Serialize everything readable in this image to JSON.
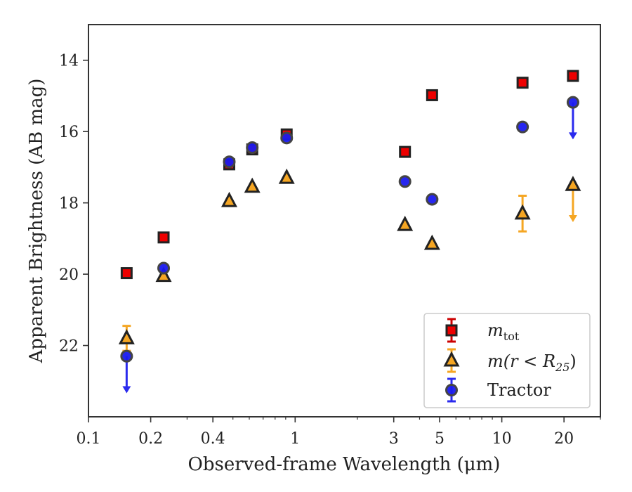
{
  "chart_data": {
    "type": "scatter",
    "title": "",
    "xlabel": "Observed-frame Wavelength (μm)",
    "ylabel": "Apparent Brightness (AB mag)",
    "xscale": "log",
    "yaxis_inverted": true,
    "xlim": [
      0.1,
      30
    ],
    "ylim": [
      24,
      13
    ],
    "x_ticks": [
      {
        "value": 0.1,
        "label": "0.1"
      },
      {
        "value": 0.2,
        "label": "0.2"
      },
      {
        "value": 0.4,
        "label": "0.4"
      },
      {
        "value": 1,
        "label": "1"
      },
      {
        "value": 3,
        "label": "3"
      },
      {
        "value": 5,
        "label": "5"
      },
      {
        "value": 10,
        "label": "10"
      },
      {
        "value": 20,
        "label": "20"
      }
    ],
    "y_ticks": [
      {
        "value": 14,
        "label": "14"
      },
      {
        "value": 16,
        "label": "16"
      },
      {
        "value": 18,
        "label": "18"
      },
      {
        "value": 20,
        "label": "20"
      },
      {
        "value": 22,
        "label": "22"
      }
    ],
    "grid": false,
    "legend_position": "bottom-right",
    "series": [
      {
        "key": "mtot",
        "name": "m_tot",
        "marker": "square",
        "color": "#ee0000",
        "edge_color": "#222222",
        "error_color": "#cc0000",
        "points": [
          {
            "x": 0.153,
            "y": 19.97
          },
          {
            "x": 0.231,
            "y": 18.97
          },
          {
            "x": 0.48,
            "y": 16.92
          },
          {
            "x": 0.62,
            "y": 16.5
          },
          {
            "x": 0.91,
            "y": 16.08
          },
          {
            "x": 3.4,
            "y": 16.57
          },
          {
            "x": 4.6,
            "y": 14.98
          },
          {
            "x": 12.6,
            "y": 14.63
          },
          {
            "x": 22.1,
            "y": 14.44
          }
        ]
      },
      {
        "key": "mr25",
        "name": "m(r < R25)",
        "marker": "triangle",
        "color": "#f5a623",
        "edge_color": "#222222",
        "error_color": "#f5a623",
        "points": [
          {
            "x": 0.153,
            "y": 21.8,
            "err": 0.35
          },
          {
            "x": 0.231,
            "y": 20.05
          },
          {
            "x": 0.48,
            "y": 17.95
          },
          {
            "x": 0.62,
            "y": 17.55
          },
          {
            "x": 0.91,
            "y": 17.3
          },
          {
            "x": 3.4,
            "y": 18.62
          },
          {
            "x": 4.6,
            "y": 19.15
          },
          {
            "x": 12.6,
            "y": 18.3,
            "err": 0.5
          },
          {
            "x": 22.1,
            "y": 17.5,
            "upper_limit": true
          }
        ]
      },
      {
        "key": "tractor",
        "name": "Tractor",
        "marker": "circle",
        "color": "#1a1aee",
        "edge_color": "#444444",
        "error_color": "#2a2aee",
        "points": [
          {
            "x": 0.153,
            "y": 22.3,
            "upper_limit": true
          },
          {
            "x": 0.231,
            "y": 19.83
          },
          {
            "x": 0.48,
            "y": 16.85
          },
          {
            "x": 0.62,
            "y": 16.45
          },
          {
            "x": 0.91,
            "y": 16.18
          },
          {
            "x": 3.4,
            "y": 17.4
          },
          {
            "x": 4.6,
            "y": 17.9
          },
          {
            "x": 12.6,
            "y": 15.87
          },
          {
            "x": 22.1,
            "y": 15.18,
            "upper_limit": true
          }
        ]
      }
    ],
    "legend": {
      "mtot_main": "m",
      "mtot_sub": "tot",
      "mr25_pre": "m(r < R",
      "mr25_sub": "25",
      "mr25_post": ")",
      "tractor": "Tractor"
    }
  }
}
